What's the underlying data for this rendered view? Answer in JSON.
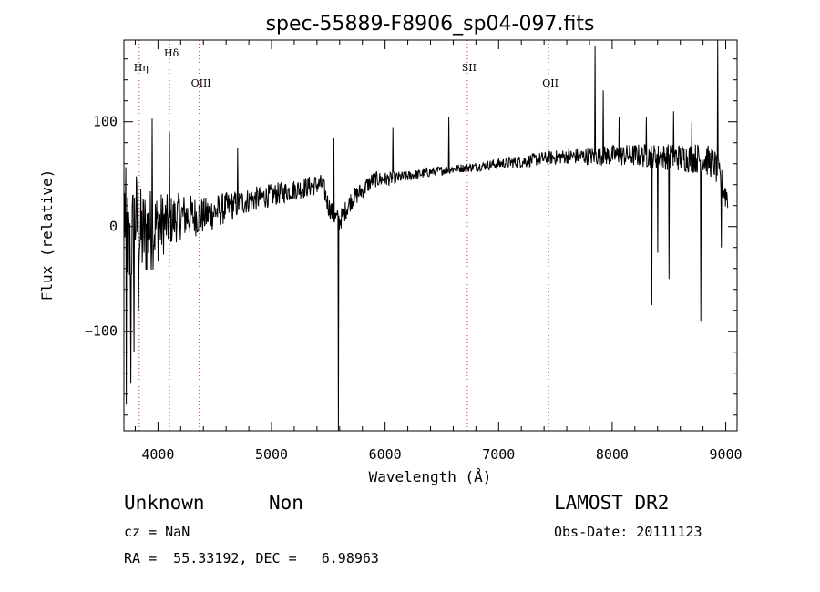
{
  "chart_data": {
    "type": "line",
    "title": "spec-55889-F8906_sp04-097.fits",
    "xlabel": "Wavelength (Å)",
    "ylabel": "Flux (relative)",
    "xlim": [
      3700,
      9100
    ],
    "ylim": [
      -195,
      178
    ],
    "xticks": [
      4000,
      5000,
      6000,
      7000,
      8000,
      9000
    ],
    "yticks": [
      -100,
      0,
      100
    ],
    "series": [
      {
        "name": "flux",
        "anchors": [
          [
            3700,
            20
          ],
          [
            3750,
            -30
          ],
          [
            3800,
            10
          ],
          [
            3850,
            -10
          ],
          [
            3900,
            -5
          ],
          [
            4000,
            0
          ],
          [
            4100,
            5
          ],
          [
            4200,
            10
          ],
          [
            4400,
            10
          ],
          [
            4600,
            18
          ],
          [
            4800,
            25
          ],
          [
            5000,
            30
          ],
          [
            5200,
            35
          ],
          [
            5400,
            40
          ],
          [
            5450,
            40
          ],
          [
            5500,
            20
          ],
          [
            5550,
            10
          ],
          [
            5600,
            5
          ],
          [
            5650,
            15
          ],
          [
            5700,
            25
          ],
          [
            5800,
            35
          ],
          [
            5900,
            45
          ],
          [
            6000,
            45
          ],
          [
            6200,
            48
          ],
          [
            6400,
            52
          ],
          [
            6600,
            55
          ],
          [
            6800,
            57
          ],
          [
            7000,
            60
          ],
          [
            7200,
            62
          ],
          [
            7400,
            65
          ],
          [
            7600,
            67
          ],
          [
            7800,
            67
          ],
          [
            8000,
            68
          ],
          [
            8200,
            68
          ],
          [
            8400,
            67
          ],
          [
            8600,
            66
          ],
          [
            8800,
            65
          ],
          [
            8900,
            60
          ],
          [
            9000,
            30
          ]
        ],
        "noise": [
          [
            3700,
            55
          ],
          [
            3900,
            45
          ],
          [
            4100,
            25
          ],
          [
            4400,
            18
          ],
          [
            4800,
            12
          ],
          [
            5200,
            10
          ],
          [
            5600,
            10
          ],
          [
            5900,
            8
          ],
          [
            6200,
            5
          ],
          [
            6700,
            4
          ],
          [
            7200,
            6
          ],
          [
            7600,
            7
          ],
          [
            8000,
            10
          ],
          [
            8400,
            12
          ],
          [
            8800,
            15
          ],
          [
            9000,
            15
          ]
        ],
        "features": [
          {
            "x": 3720,
            "y": -170
          },
          {
            "x": 3760,
            "y": -150
          },
          {
            "x": 3790,
            "y": -120
          },
          {
            "x": 3830,
            "y": -80
          },
          {
            "x": 3950,
            "y": 103
          },
          {
            "x": 4100,
            "y": 90
          },
          {
            "x": 4700,
            "y": 75
          },
          {
            "x": 5550,
            "y": 85
          },
          {
            "x": 5590,
            "y": -195
          },
          {
            "x": 6070,
            "y": 95
          },
          {
            "x": 6560,
            "y": 105
          },
          {
            "x": 7850,
            "y": 172
          },
          {
            "x": 7920,
            "y": 130
          },
          {
            "x": 8060,
            "y": 105
          },
          {
            "x": 8300,
            "y": 105
          },
          {
            "x": 8350,
            "y": -75
          },
          {
            "x": 8400,
            "y": -25
          },
          {
            "x": 8500,
            "y": -50
          },
          {
            "x": 8540,
            "y": 110
          },
          {
            "x": 8700,
            "y": 100
          },
          {
            "x": 8780,
            "y": -90
          },
          {
            "x": 8930,
            "y": 178
          },
          {
            "x": 8960,
            "y": -20
          }
        ]
      }
    ],
    "line_markers": [
      {
        "name": "Hη",
        "x": 3835
      },
      {
        "name": "Hδ",
        "x": 4102
      },
      {
        "name": "OIII",
        "x": 4363
      },
      {
        "name": "SII",
        "x": 6724
      },
      {
        "name": "OII",
        "x": 7440
      }
    ],
    "marker_color": "#cc3333"
  },
  "footer": {
    "class": "Unknown",
    "subclass": "Non",
    "survey": "LAMOST DR2",
    "cz": "cz = NaN",
    "obs_date": "Obs-Date: 20111123",
    "radec": "RA =  55.33192, DEC =   6.98963"
  }
}
